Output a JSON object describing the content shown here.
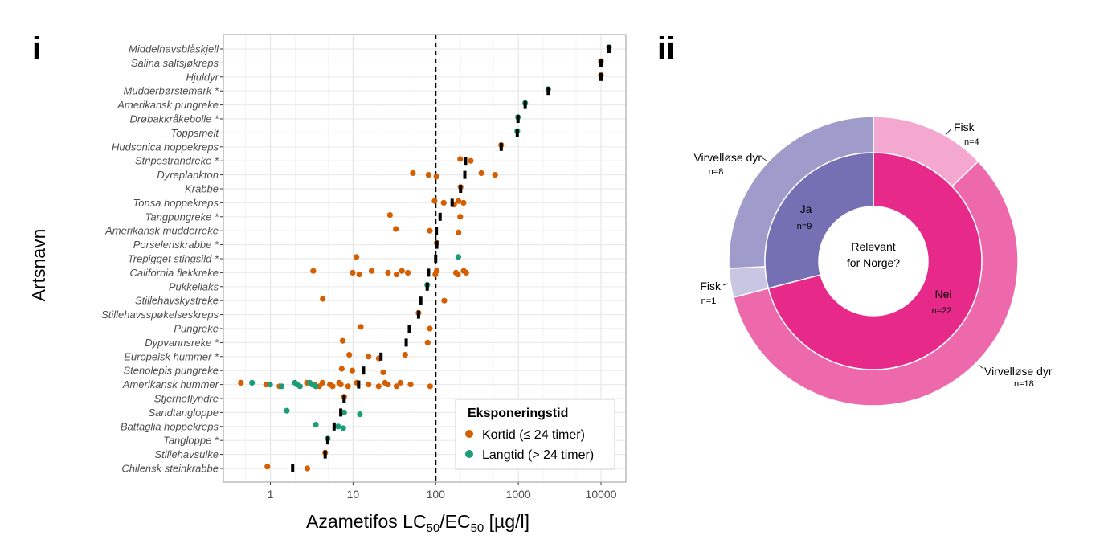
{
  "panels": {
    "left": "i",
    "right": "ii"
  },
  "chart_data": [
    {
      "type": "scatter",
      "xscale": "log",
      "xlim": [
        0.27,
        20000
      ],
      "xticks": [
        "1",
        "10",
        "100",
        "1000",
        "10000"
      ],
      "xlabel": {
        "prefix": "Azametifos LC",
        "sub1": "50",
        "mid": "/EC",
        "sub2": "50",
        "suffix": " [µg/l]"
      },
      "ylabel": "Artsnavn",
      "reference_line": 100,
      "grid": true,
      "legend": {
        "title": "Eksponeringstid",
        "placement": "bottom-right",
        "items": [
          {
            "key": "kortid",
            "label": "Kortid (≤ 24 timer)",
            "color": "#D55E00"
          },
          {
            "key": "langtid",
            "label": "Langtid (> 24 timer)",
            "color": "#1B9E77"
          }
        ]
      },
      "median_marker_color": "#000000",
      "species": [
        {
          "name": "Middelhavsblåskjell",
          "median": 12500,
          "kortid": [],
          "langtid": [
            12500
          ]
        },
        {
          "name": "Salina saltsjøkreps",
          "median": 10000,
          "kortid": [
            10000
          ],
          "langtid": []
        },
        {
          "name": "Hjuldyr",
          "median": 10000,
          "kortid": [
            10000
          ],
          "langtid": []
        },
        {
          "name": "Mudderbørstemark *",
          "median": 2300,
          "kortid": [],
          "langtid": [
            2300
          ]
        },
        {
          "name": "Amerikansk pungreke",
          "median": 1210,
          "kortid": [],
          "langtid": [
            1210
          ]
        },
        {
          "name": "Drøbakkråkebolle *",
          "median": 990,
          "kortid": [],
          "langtid": [
            990
          ]
        },
        {
          "name": "Toppsmelt",
          "median": 970,
          "kortid": [],
          "langtid": [
            970
          ]
        },
        {
          "name": "Hudsonica hoppekreps",
          "median": 620,
          "kortid": [
            620
          ],
          "langtid": []
        },
        {
          "name": "Stripestrandreke *",
          "median": 230,
          "kortid": [
            198,
            265
          ],
          "langtid": []
        },
        {
          "name": "Dyreplankton",
          "median": 225,
          "kortid": [
            53,
            82,
            102,
            357,
            524
          ],
          "langtid": []
        },
        {
          "name": "Krabbe",
          "median": 200,
          "kortid": [
            200
          ],
          "langtid": []
        },
        {
          "name": "Tonsa hoppekreps",
          "median": 158,
          "kortid": [
            97,
            125,
            167,
            188,
            217
          ],
          "langtid": []
        },
        {
          "name": "Tangpungreke *",
          "median": 113,
          "kortid": [
            28,
            198
          ],
          "langtid": []
        },
        {
          "name": "Amerikansk mudderreke",
          "median": 102,
          "kortid": [
            33,
            85,
            189
          ],
          "langtid": []
        },
        {
          "name": "Porselenskrabbe *",
          "median": 103,
          "kortid": [
            103
          ],
          "langtid": []
        },
        {
          "name": "Trepigget stingsild *",
          "median": 100,
          "kortid": [
            11
          ],
          "langtid": [
            188
          ]
        },
        {
          "name": "California flekkreke",
          "median": 82,
          "kortid": [
            3.3,
            9.9,
            11.9,
            16.8,
            26.5,
            33.6,
            39,
            46,
            99,
            103,
            176,
            186,
            218,
            234
          ],
          "langtid": []
        },
        {
          "name": "Pukkellaks",
          "median": 79,
          "kortid": [],
          "langtid": [
            79
          ]
        },
        {
          "name": "Stillehavskystreke",
          "median": 66,
          "kortid": [
            4.3,
            127
          ],
          "langtid": []
        },
        {
          "name": "Stillehavsspøkelseskreps",
          "median": 62,
          "kortid": [
            62
          ],
          "langtid": []
        },
        {
          "name": "Pungreke",
          "median": 48,
          "kortid": [
            12.4,
            85
          ],
          "langtid": []
        },
        {
          "name": "Dypvannsreke *",
          "median": 44,
          "kortid": [
            7.5,
            80
          ],
          "langtid": []
        },
        {
          "name": "Europeisk hummer *",
          "median": 21.8,
          "kortid": [
            9,
            15.4,
            20.5,
            42.7
          ],
          "langtid": []
        },
        {
          "name": "Stenolepis pungreke",
          "median": 13.4,
          "kortid": [
            7.3,
            9.8,
            23.2
          ],
          "langtid": []
        },
        {
          "name": "Amerikansk hummer",
          "median": 11.7,
          "kortid": [
            0.44,
            0.89,
            1.29,
            2.77,
            3.4,
            3.9,
            4.27,
            5.26,
            5.67,
            6.8,
            7.1,
            8.7,
            11.1,
            15.4,
            20.4,
            24.4,
            26.5,
            33.6,
            37.4,
            49.7,
            85.7
          ],
          "langtid": [
            0.6,
            0.99,
            1.37,
            1.98,
            2.1,
            2.28,
            3.0,
            3.2,
            3.54
          ]
        },
        {
          "name": "Stjerneflyndre",
          "median": 7.8,
          "kortid": [
            7.8
          ],
          "langtid": []
        },
        {
          "name": "Sandtangloppe",
          "median": 7.1,
          "kortid": [],
          "langtid": [
            1.58,
            7.8,
            12.1
          ]
        },
        {
          "name": "Battaglia hoppekreps",
          "median": 5.9,
          "kortid": [],
          "langtid": [
            3.54,
            6.6,
            7.6
          ]
        },
        {
          "name": "Tangloppe *",
          "median": 4.95,
          "kortid": [],
          "langtid": [
            4.95
          ]
        },
        {
          "name": "Stillehavsulke",
          "median": 4.6,
          "kortid": [
            4.6
          ],
          "langtid": []
        },
        {
          "name": "Chilensk steinkrabbe",
          "median": 1.86,
          "kortid": [
            0.92,
            2.8
          ],
          "langtid": []
        }
      ]
    },
    {
      "type": "pie",
      "variant": "sunburst-donut",
      "center_label": [
        "Relevant",
        "for Norge?"
      ],
      "inner": [
        {
          "label": "Nei",
          "n": "n=22",
          "value": 22,
          "color": "#E7298A"
        },
        {
          "label": "Ja",
          "n": "n=9",
          "value": 9,
          "color": "#7570B3"
        }
      ],
      "outer": [
        {
          "label": "Fisk",
          "n": "n=4",
          "value": 4,
          "parent": "Nei",
          "color": "#F4A8CF"
        },
        {
          "label": "Virvelløse dyr",
          "n": "n=18",
          "value": 18,
          "parent": "Nei",
          "color": "#EE68AC"
        },
        {
          "label": "Fisk",
          "n": "n=1",
          "value": 1,
          "parent": "Ja",
          "color": "#C8C6E2"
        },
        {
          "label": "Virvelløse dyr",
          "n": "n=8",
          "value": 8,
          "parent": "Ja",
          "color": "#9F9BCA"
        }
      ]
    }
  ]
}
